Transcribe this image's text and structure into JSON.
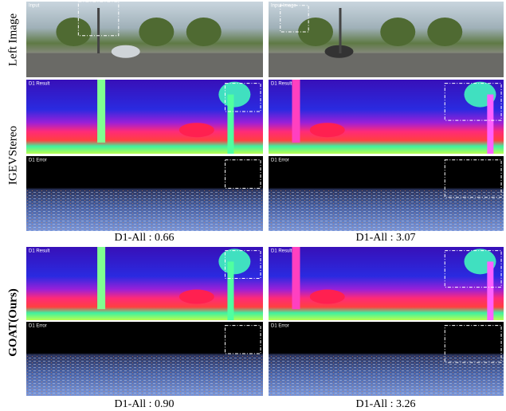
{
  "row_labels": [
    "Left Image",
    "IGEVStereo",
    "GOAT(Ours)"
  ],
  "panel_tags": {
    "input_left": "Input",
    "input_right": "Input Image",
    "result": "D1 Result",
    "error": "D1 Error"
  },
  "captions": {
    "igev": [
      "D1-All : 0.66",
      "D1-All : 3.07"
    ],
    "goat": [
      "D1-All : 0.90",
      "D1-All : 3.26"
    ]
  }
}
